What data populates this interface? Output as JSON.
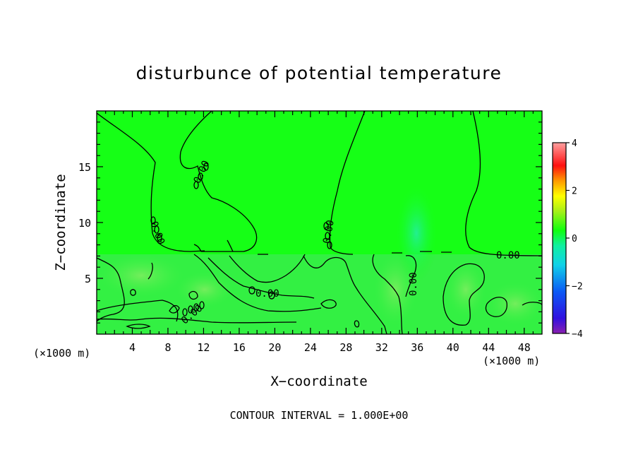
{
  "chart_data": {
    "type": "heatmap",
    "title": "disturbunce of potential temperature",
    "xlabel": "X−coordinate",
    "ylabel": "Z−coordinate",
    "x_unit_left": "(×1000 m)",
    "x_unit_right": "(×1000 m)",
    "xlim": [
      0,
      50
    ],
    "ylim": [
      0,
      20
    ],
    "xticks": [
      4,
      8,
      12,
      16,
      20,
      24,
      28,
      32,
      36,
      40,
      44,
      48
    ],
    "yticks": [
      5,
      10,
      15
    ],
    "colorbar": {
      "ticks": [
        4,
        2,
        0,
        -2,
        -4
      ],
      "ticklabels": [
        "4",
        "2",
        "0",
        "−2",
        "−4"
      ],
      "vmin": -4,
      "vmax": 4
    },
    "contour_level_label": "0.00",
    "contour_labels": [
      "0.00",
      "0.00",
      "0.00",
      "0.00",
      "0.00",
      "0.00",
      "0.00",
      "0.00",
      "0.00"
    ],
    "contour_interval_text": "CONTOUR INTERVAL = 1.000E+00",
    "colors": {
      "background_field": "#16ff16",
      "lower_field": "#33f043",
      "contour_line": "#000000"
    }
  }
}
